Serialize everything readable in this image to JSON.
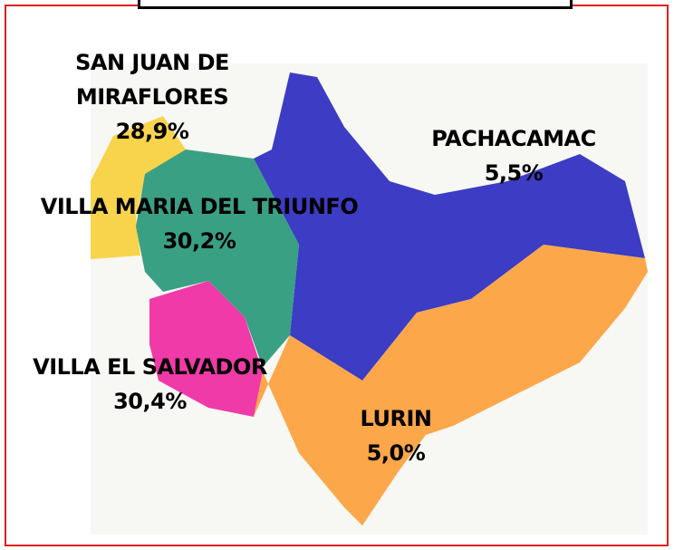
{
  "regions": [
    {
      "name": "SAN JUAN DE MIRAFLORES",
      "share": "28,9%"
    },
    {
      "name": "VILLA MARIA DEL TRIUNFO",
      "share": "30,2%"
    },
    {
      "name": "PACHACAMAC",
      "share": "5,5%"
    },
    {
      "name": "VILLA EL SALVADOR",
      "share": "30,4%"
    },
    {
      "name": "LURIN",
      "share": "5,0%"
    }
  ]
}
